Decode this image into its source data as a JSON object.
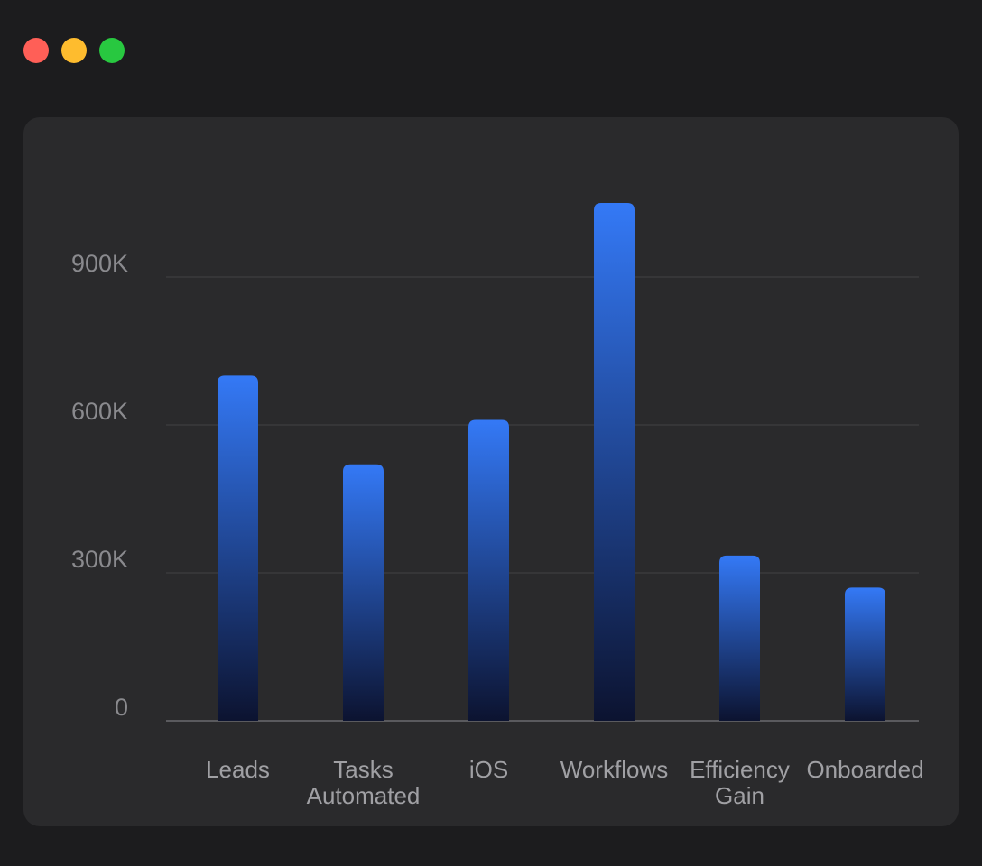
{
  "window": {
    "controls": [
      {
        "name": "close",
        "color": "#ff5f57"
      },
      {
        "name": "minimize",
        "color": "#febc2e"
      },
      {
        "name": "zoom",
        "color": "#28c840"
      }
    ]
  },
  "chart_data": {
    "type": "bar",
    "categories": [
      "Leads",
      "Tasks Automated",
      "iOS",
      "Workflows",
      "Efficiency Gain",
      "Onboarded"
    ],
    "category_lines": [
      [
        "Leads"
      ],
      [
        "Tasks",
        "Automated"
      ],
      [
        "iOS"
      ],
      [
        "Workflows"
      ],
      [
        "Efficiency",
        "Gain"
      ],
      [
        "Onboarded"
      ]
    ],
    "values": [
      700000,
      520000,
      610000,
      1050000,
      335000,
      270000
    ],
    "ylim": [
      0,
      1050000
    ],
    "yticks": [
      0,
      300000,
      600000,
      900000
    ],
    "ytick_labels": [
      "0",
      "300K",
      "600K",
      "900K"
    ],
    "grid": true,
    "title": "",
    "xlabel": "",
    "ylabel": "",
    "colors": {
      "bar_top": "#3479f6",
      "bar_bottom": "#0c1330",
      "grid": "#3a3a3c",
      "axis": "#5a5a5e"
    }
  }
}
